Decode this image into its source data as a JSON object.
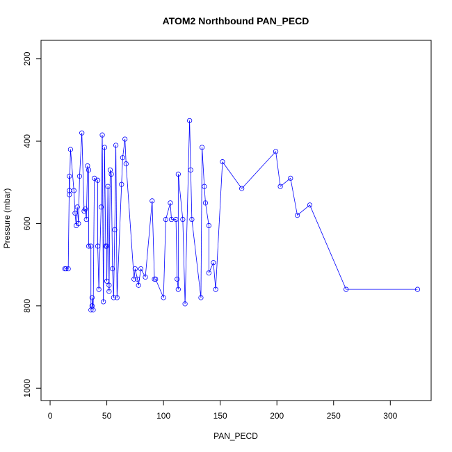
{
  "chart_data": {
    "type": "scatter",
    "title": "ATOM2 Northbound PAN_PECD",
    "xlabel": "PAN_PECD",
    "ylabel": "Pressure (mbar)",
    "xlim": [
      -8,
      336
    ],
    "ylim": [
      1030,
      155
    ],
    "x_ticks": [
      0,
      50,
      100,
      150,
      200,
      250,
      300
    ],
    "y_ticks": [
      200,
      400,
      600,
      800,
      1000
    ],
    "grid": false,
    "legend": "none",
    "color": "#0000ff",
    "series": [
      {
        "points": [
          [
            13,
            710
          ],
          [
            14,
            710
          ],
          [
            16,
            710
          ],
          [
            17,
            485
          ],
          [
            17,
            520
          ],
          [
            17,
            530
          ],
          [
            18,
            420
          ],
          [
            21,
            520
          ],
          [
            22,
            575
          ],
          [
            23,
            605
          ],
          [
            24,
            560
          ],
          [
            25,
            600
          ],
          [
            26,
            485
          ],
          [
            28,
            380
          ],
          [
            30,
            570
          ],
          [
            31,
            565
          ],
          [
            32,
            590
          ],
          [
            33,
            460
          ],
          [
            34,
            470
          ],
          [
            34,
            655
          ],
          [
            36,
            655
          ],
          [
            36,
            810
          ],
          [
            37,
            800
          ],
          [
            37,
            780
          ],
          [
            38,
            810
          ],
          [
            39,
            490
          ],
          [
            42,
            495
          ],
          [
            42,
            655
          ],
          [
            43,
            760
          ],
          [
            45,
            560
          ],
          [
            46,
            385
          ],
          [
            47,
            790
          ],
          [
            48,
            415
          ],
          [
            49,
            655
          ],
          [
            50,
            655
          ],
          [
            50,
            740
          ],
          [
            51,
            510
          ],
          [
            52,
            750
          ],
          [
            52,
            765
          ],
          [
            53,
            470
          ],
          [
            54,
            480
          ],
          [
            55,
            710
          ],
          [
            56,
            780
          ],
          [
            57,
            615
          ],
          [
            58,
            410
          ],
          [
            59,
            780
          ],
          [
            63,
            505
          ],
          [
            64,
            440
          ],
          [
            66,
            395
          ],
          [
            67,
            455
          ],
          [
            74,
            735
          ],
          [
            75,
            710
          ],
          [
            77,
            735
          ],
          [
            78,
            750
          ],
          [
            80,
            710
          ],
          [
            84,
            730
          ],
          [
            90,
            545
          ],
          [
            92,
            735
          ],
          [
            93,
            735
          ],
          [
            100,
            780
          ],
          [
            102,
            590
          ],
          [
            106,
            550
          ],
          [
            107,
            590
          ],
          [
            111,
            590
          ],
          [
            112,
            735
          ],
          [
            113,
            760
          ],
          [
            113,
            480
          ],
          [
            117,
            590
          ],
          [
            119,
            795
          ],
          [
            123,
            350
          ],
          [
            124,
            470
          ],
          [
            125,
            590
          ],
          [
            133,
            780
          ],
          [
            134,
            415
          ],
          [
            136,
            510
          ],
          [
            137,
            550
          ],
          [
            140,
            605
          ],
          [
            140,
            720
          ],
          [
            144,
            695
          ],
          [
            146,
            760
          ],
          [
            152,
            450
          ],
          [
            169,
            515
          ],
          [
            199,
            425
          ],
          [
            203,
            510
          ],
          [
            212,
            490
          ],
          [
            218,
            580
          ],
          [
            229,
            555
          ],
          [
            261,
            760
          ],
          [
            324,
            760
          ]
        ]
      }
    ]
  }
}
